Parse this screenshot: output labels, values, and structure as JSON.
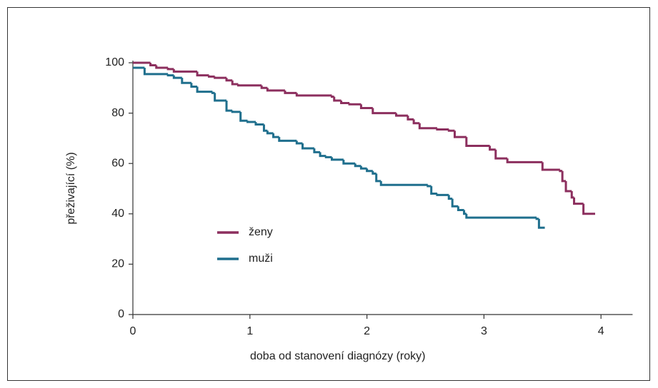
{
  "chart_data": {
    "type": "step",
    "xlabel": "doba od stanovení diagnózy (roky)",
    "ylabel": "přeživající (%)",
    "xlim": [
      0,
      4.27
    ],
    "ylim": [
      0,
      100
    ],
    "xticks": [
      0,
      1,
      2,
      3,
      4
    ],
    "yticks": [
      0,
      20,
      40,
      60,
      80,
      100
    ],
    "legend_position": "center-left",
    "series": [
      {
        "name": "ženy",
        "color": "#8c2f5e",
        "x": [
          0,
          0.15,
          0.2,
          0.3,
          0.35,
          0.55,
          0.65,
          0.7,
          0.8,
          0.85,
          0.9,
          1.1,
          1.15,
          1.3,
          1.4,
          1.7,
          1.72,
          1.78,
          1.85,
          1.95,
          2.05,
          2.25,
          2.35,
          2.4,
          2.45,
          2.6,
          2.7,
          2.75,
          2.85,
          3.05,
          3.1,
          3.2,
          3.5,
          3.65,
          3.67,
          3.7,
          3.75,
          3.77,
          3.85,
          3.95
        ],
        "values": [
          100,
          99,
          98,
          97.5,
          96.5,
          95,
          94.5,
          94,
          93,
          91.5,
          91,
          90,
          89,
          88,
          87,
          86.5,
          85,
          84,
          83.5,
          82,
          80,
          79,
          77.5,
          76,
          74,
          73.5,
          73,
          70.5,
          67,
          65.5,
          62,
          60.5,
          57.5,
          57,
          53,
          49,
          46.5,
          44,
          40,
          40
        ]
      },
      {
        "name": "muži",
        "color": "#1f6f8d",
        "x": [
          0,
          0.1,
          0.3,
          0.35,
          0.42,
          0.5,
          0.55,
          0.68,
          0.7,
          0.8,
          0.85,
          0.92,
          0.98,
          1.05,
          1.12,
          1.15,
          1.2,
          1.25,
          1.4,
          1.45,
          1.55,
          1.6,
          1.65,
          1.7,
          1.8,
          1.9,
          1.95,
          2.0,
          2.05,
          2.08,
          2.12,
          2.52,
          2.55,
          2.6,
          2.7,
          2.73,
          2.78,
          2.83,
          2.85,
          3.45,
          3.47,
          3.52
        ],
        "values": [
          98,
          95.5,
          95,
          94,
          92,
          90.5,
          88.5,
          88,
          85,
          81,
          80.5,
          77,
          76.5,
          75.5,
          73,
          72,
          70.5,
          69,
          68,
          66,
          64.5,
          63,
          62.5,
          61.5,
          60,
          59,
          58,
          57,
          56,
          53,
          51.5,
          51,
          48,
          47.5,
          46,
          43,
          41.5,
          40,
          38.5,
          38,
          34.5,
          34.5
        ]
      }
    ]
  }
}
